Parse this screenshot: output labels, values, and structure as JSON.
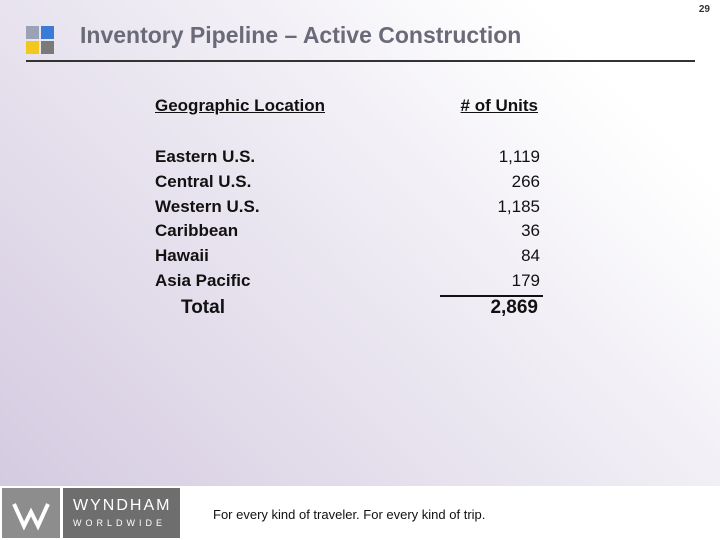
{
  "page_number": "29",
  "header": {
    "title": "Inventory Pipeline – Active Construction"
  },
  "table": {
    "columns": [
      "Geographic Location",
      "# of Units"
    ],
    "rows": [
      [
        "Eastern U.S.",
        "1,119"
      ],
      [
        "Central U.S.",
        "266"
      ],
      [
        "Western U.S.",
        "1,185"
      ],
      [
        "Caribbean",
        "36"
      ],
      [
        "Hawaii",
        "84"
      ],
      [
        "Asia Pacific",
        "179"
      ]
    ],
    "total": [
      "Total",
      "2,869"
    ]
  },
  "footer": {
    "logo_name": "WYNDHAM",
    "logo_sub": "WORLDWIDE",
    "tagline": "For every kind of traveler. For every kind of trip."
  }
}
